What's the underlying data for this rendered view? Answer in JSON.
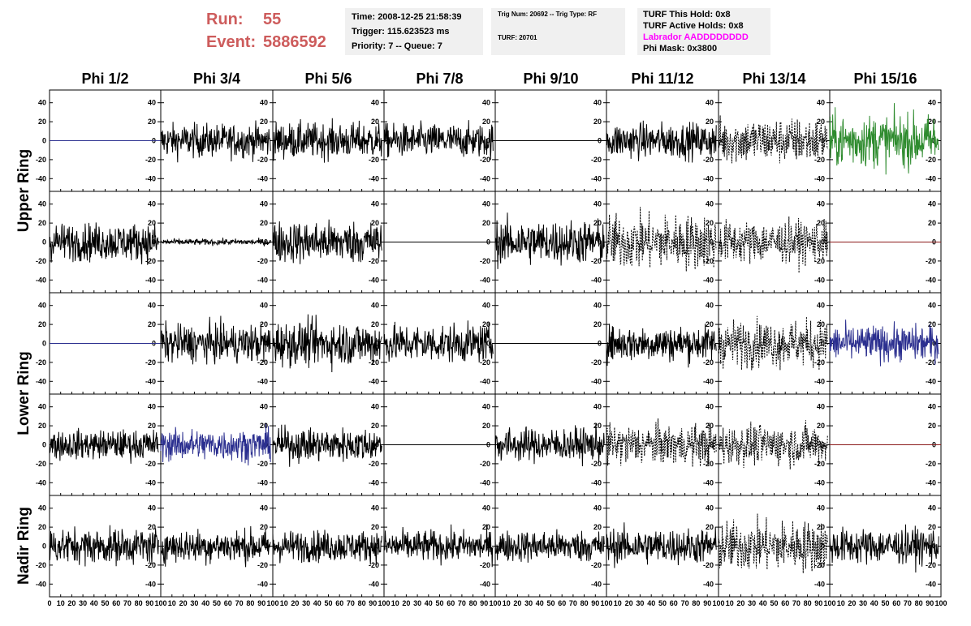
{
  "header": {
    "run_label": "Run:",
    "run_value": "55",
    "event_label": "Event:",
    "event_value": "5886592",
    "time": "Time: 2008-12-25 21:58:39",
    "trigger": "Trigger: 115.623523 ms",
    "priority": "Priority: 7 -- Queue: 7",
    "trig_num": "Trig Num: 20692 -- Trig Type: RF",
    "turf": "TURF: 20701",
    "turf_this_hold": "TURF This Hold: 0x8",
    "turf_active_holds": "TURF Active Holds: 0x8",
    "labrador": "Labrador AADDDDDDDD",
    "phi_mask": "Phi Mask: 0x3800"
  },
  "colors": {
    "header_red": "#cd5c5c",
    "labrador_magenta": "#ff00ff",
    "info_box_bg": "#f0f0f0",
    "trace_black": "#000000",
    "trace_blue": "#2b2f8f",
    "trace_green": "#2e8b2e",
    "trace_red": "#8b1a1a"
  },
  "chart_data": {
    "type": "line",
    "columns": [
      "Phi 1/2",
      "Phi 3/4",
      "Phi 5/6",
      "Phi 7/8",
      "Phi 9/10",
      "Phi 11/12",
      "Phi 13/14",
      "Phi 15/16"
    ],
    "ring_labels": [
      {
        "text": "Upper Ring",
        "rows": [
          0,
          1
        ]
      },
      {
        "text": "Lower Ring",
        "rows": [
          2,
          3
        ]
      },
      {
        "text": "Nadir Ring",
        "rows": [
          4
        ]
      }
    ],
    "xlim": [
      0,
      100
    ],
    "ylim": [
      -50,
      50
    ],
    "y_ticks": [
      -40,
      -20,
      0,
      20,
      40
    ],
    "x_tick_labels": [
      "0",
      "10",
      "20",
      "30",
      "40",
      "50",
      "60",
      "70",
      "80",
      "90",
      "100"
    ],
    "grid": false,
    "panels": [
      [
        "flat-blue",
        "black:16",
        "black:17",
        "black:16",
        "flat-black",
        "black:17",
        "dashed:22",
        "green:25"
      ],
      [
        "black:18",
        "black-small:3",
        "black:20",
        "flat-black",
        "black:21",
        "dashed:26",
        "dashed:20",
        "flat-red"
      ],
      [
        "flat-blue",
        "black:18",
        "black:21",
        "black:18",
        "flat-black",
        "black:17",
        "dashed:22",
        "blue:17"
      ],
      [
        "black:14",
        "blue:15",
        "black:16",
        "flat-black",
        "black:16",
        "dashed:19",
        "dashed:19",
        "flat-red"
      ],
      [
        "black:17",
        "black:16",
        "black:15",
        "black:15",
        "black:15",
        "black:17",
        "dashed:24",
        "black:17"
      ]
    ]
  }
}
